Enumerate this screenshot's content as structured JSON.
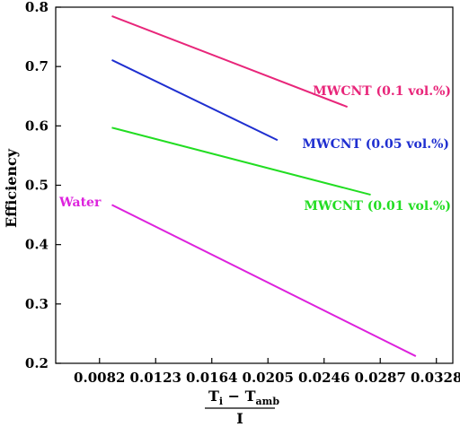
{
  "chart_data": {
    "type": "line",
    "xlabel": {
      "numerator_base": "T",
      "numerator_sub1": "i",
      "minus": " − ",
      "numerator_base2": "T",
      "numerator_sub2": "amb",
      "denominator": "I"
    },
    "ylabel": "Efficiency",
    "xlim": [
      0.005,
      0.034
    ],
    "ylim": [
      0.2,
      0.8
    ],
    "xticks": [
      0.0082,
      0.0123,
      0.0164,
      0.0205,
      0.0246,
      0.0287,
      0.0328
    ],
    "xtick_labels": [
      "0.0082",
      "0.0123",
      "0.0164",
      "0.0205",
      "0.0246",
      "0.0287",
      "0.0328"
    ],
    "yticks": [
      0.2,
      0.3,
      0.4,
      0.5,
      0.6,
      0.7,
      0.8
    ],
    "ytick_labels": [
      "0.2",
      "0.3",
      "0.4",
      "0.5",
      "0.6",
      "0.7",
      "0.8"
    ],
    "series": [
      {
        "name": "MWCNT (0.1 vol.%)",
        "color": "#e8267a",
        "x": [
          0.0091,
          0.0263
        ],
        "y": [
          0.785,
          0.632
        ]
      },
      {
        "name": "MWCNT (0.05 vol.%)",
        "color": "#1f2fd0",
        "x": [
          0.0091,
          0.0212
        ],
        "y": [
          0.711,
          0.576
        ]
      },
      {
        "name": "MWCNT (0.01 vol.%)",
        "color": "#22dd22",
        "x": [
          0.0091,
          0.028
        ],
        "y": [
          0.597,
          0.484
        ]
      },
      {
        "name": "Water",
        "color": "#dd22dd",
        "x": [
          0.0091,
          0.0313
        ],
        "y": [
          0.467,
          0.212
        ]
      }
    ]
  }
}
